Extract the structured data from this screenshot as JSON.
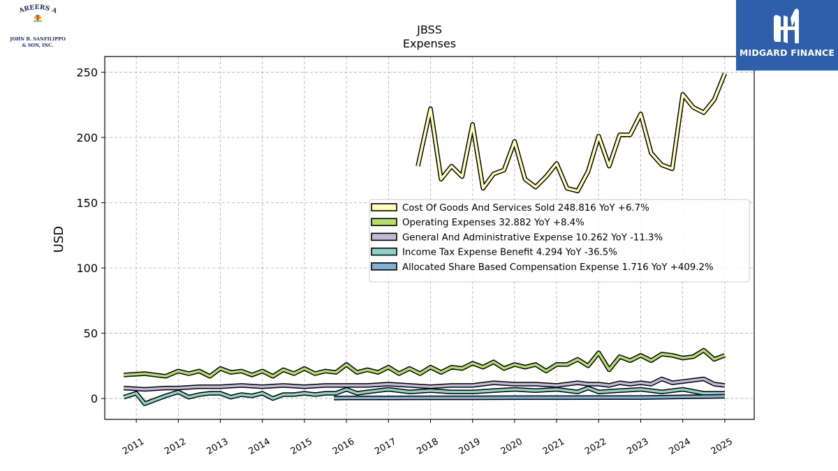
{
  "branding": {
    "left_logo_line1": "CAREERS AT",
    "left_logo_line2": "JOHN B. SANFILIPPO",
    "left_logo_line3": "& SON, INC.",
    "right_logo_text": "MIDGARD FINANCE",
    "right_logo_color": "#2f5eaa"
  },
  "chart_data": {
    "type": "line",
    "title": "JBSS",
    "subtitle": "Expenses",
    "ylabel": "USD",
    "xlabel": "",
    "ylim": [
      -16,
      262
    ],
    "xlim": [
      2010.25,
      2025.7
    ],
    "yticks": [
      0,
      50,
      100,
      150,
      200,
      250
    ],
    "xticks": [
      "2011",
      "2012",
      "2013",
      "2014",
      "2015",
      "2016",
      "2017",
      "2018",
      "2019",
      "2020",
      "2021",
      "2022",
      "2023",
      "2024",
      "2025"
    ],
    "grid": true,
    "legend_position": "center-right",
    "series": [
      {
        "name": "Cost Of Goods And Services Sold",
        "legend": "Cost Of Goods And Services Sold  248.816 YoY +6.7%",
        "color": "#ffffb3",
        "x": [
          2017.7,
          2018.0,
          2018.25,
          2018.5,
          2018.75,
          2019.0,
          2019.25,
          2019.5,
          2019.75,
          2020.0,
          2020.25,
          2020.5,
          2020.75,
          2021.0,
          2021.25,
          2021.5,
          2021.75,
          2022.0,
          2022.25,
          2022.5,
          2022.75,
          2023.0,
          2023.25,
          2023.5,
          2023.75,
          2024.0,
          2024.25,
          2024.5,
          2024.75,
          2025.0
        ],
        "values": [
          178,
          222,
          168,
          178,
          170,
          210,
          161,
          172,
          175,
          197,
          168,
          162,
          170,
          180,
          161,
          159,
          174,
          201,
          178,
          202,
          202,
          218,
          188,
          179,
          176,
          233,
          223,
          219,
          229,
          249
        ]
      },
      {
        "name": "Operating Expenses",
        "legend": "Operating Expenses  32.882 YoY +8.4%",
        "color": "#b3de69",
        "x": [
          2010.7,
          2011.2,
          2011.7,
          2012.0,
          2012.25,
          2012.5,
          2012.75,
          2013.0,
          2013.25,
          2013.5,
          2013.75,
          2014.0,
          2014.25,
          2014.5,
          2014.75,
          2015.0,
          2015.25,
          2015.5,
          2015.75,
          2016.0,
          2016.25,
          2016.5,
          2016.75,
          2017.0,
          2017.25,
          2017.5,
          2017.75,
          2018.0,
          2018.25,
          2018.5,
          2018.75,
          2019.0,
          2019.25,
          2019.5,
          2019.75,
          2020.0,
          2020.25,
          2020.5,
          2020.75,
          2021.0,
          2021.25,
          2021.5,
          2021.75,
          2022.0,
          2022.25,
          2022.5,
          2022.75,
          2023.0,
          2023.25,
          2023.5,
          2023.75,
          2024.0,
          2024.25,
          2024.5,
          2024.75,
          2025.0
        ],
        "values": [
          18,
          19,
          17,
          21,
          19,
          21,
          17,
          23,
          20,
          21,
          18,
          21,
          17,
          22,
          19,
          23,
          19,
          21,
          20,
          26,
          20,
          22,
          20,
          24,
          19,
          23,
          19,
          24,
          20,
          24,
          23,
          27,
          24,
          28,
          23,
          26,
          24,
          26,
          21,
          26,
          26,
          30,
          25,
          35,
          22,
          32,
          29,
          33,
          29,
          34,
          33,
          31,
          32,
          37,
          30,
          33
        ]
      },
      {
        "name": "General And Administrative Expense",
        "legend": "General And Administrative Expense  10.262 YoY -11.3%",
        "color": "#bebada",
        "x": [
          2010.7,
          2011.2,
          2011.7,
          2012.0,
          2012.5,
          2013.0,
          2013.5,
          2014.0,
          2014.5,
          2015.0,
          2015.5,
          2016.0,
          2016.5,
          2017.0,
          2017.5,
          2018.0,
          2018.5,
          2019.0,
          2019.5,
          2020.0,
          2020.5,
          2021.0,
          2021.5,
          2021.75,
          2022.0,
          2022.25,
          2022.5,
          2022.75,
          2023.0,
          2023.25,
          2023.5,
          2023.75,
          2024.0,
          2024.25,
          2024.5,
          2024.75,
          2025.0
        ],
        "values": [
          8,
          7,
          8,
          8,
          9,
          9,
          10,
          9,
          10,
          9,
          10,
          10,
          10,
          11,
          10,
          9,
          10,
          10,
          12,
          11,
          11,
          10,
          12,
          11,
          11,
          10,
          12,
          11,
          12,
          11,
          15,
          12,
          13,
          14,
          15,
          11,
          10
        ]
      },
      {
        "name": "Income Tax Expense Benefit",
        "legend": "Income Tax Expense Benefit  4.294 YoY -36.5%",
        "color": "#8dd3c7",
        "x": [
          2010.7,
          2011.0,
          2011.2,
          2011.7,
          2012.0,
          2012.25,
          2012.5,
          2012.75,
          2013.0,
          2013.25,
          2013.5,
          2013.75,
          2014.0,
          2014.25,
          2014.5,
          2014.75,
          2015.0,
          2015.25,
          2015.5,
          2015.75,
          2016.0,
          2016.25,
          2016.5,
          2016.75,
          2017.0,
          2017.5,
          2018.0,
          2018.5,
          2019.0,
          2019.5,
          2020.0,
          2020.5,
          2021.0,
          2021.5,
          2021.75,
          2022.0,
          2022.5,
          2023.0,
          2023.5,
          2024.0,
          2024.5,
          2025.0
        ],
        "values": [
          1,
          4,
          -4,
          2,
          5,
          1,
          3,
          4,
          4,
          1,
          3,
          2,
          4,
          0,
          3,
          3,
          4,
          3,
          4,
          4,
          7,
          4,
          5,
          6,
          7,
          5,
          6,
          5,
          5,
          6,
          7,
          6,
          7,
          5,
          8,
          5,
          6,
          7,
          5,
          7,
          4,
          4
        ]
      },
      {
        "name": "Allocated Share Based Compensation Expense",
        "legend": "Allocated Share Based Compensation Expense  1.716 YoY +409.2%",
        "color": "#80b1d3",
        "x": [
          2015.7,
          2016.0,
          2017.0,
          2018.0,
          2019.0,
          2020.0,
          2021.0,
          2022.0,
          2023.0,
          2024.0,
          2025.0
        ],
        "values": [
          0.3,
          0.4,
          0.4,
          0.5,
          0.5,
          0.6,
          0.6,
          0.7,
          0.7,
          1.2,
          1.7
        ]
      }
    ]
  }
}
